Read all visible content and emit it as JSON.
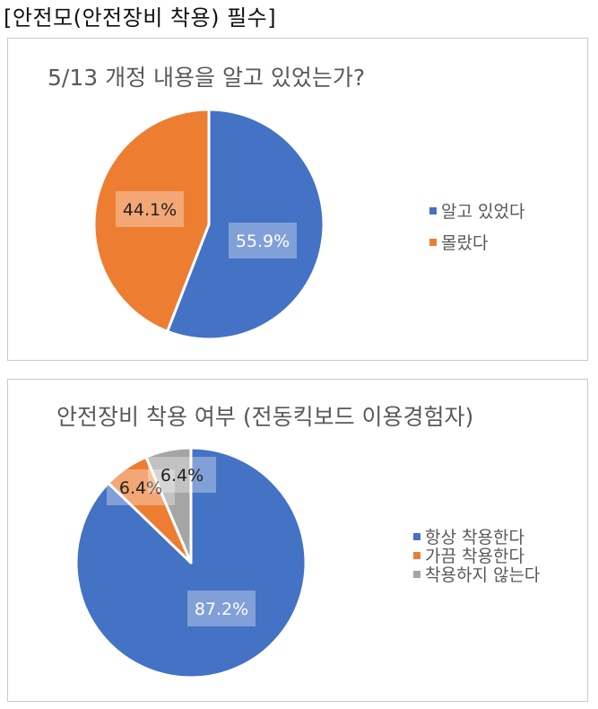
{
  "header": {
    "title": "[안전모(안전장비 착용) 필수]"
  },
  "chart_data": [
    {
      "type": "pie",
      "title": "5/13 개정 내용을 알고 있었는가?",
      "categories": [
        "알고 있었다",
        "몰랐다"
      ],
      "values": [
        55.9,
        44.1
      ],
      "labels": [
        "55.9%",
        "44.1%"
      ],
      "colors": [
        "#4472C4",
        "#ED7D31"
      ],
      "legend": "right"
    },
    {
      "type": "pie",
      "title": "안전장비 착용 여부 (전동킥보드 이용경험자)",
      "categories": [
        "항상 착용한다",
        "가끔 착용한다",
        "착용하지 않는다"
      ],
      "values": [
        87.2,
        6.4,
        6.4
      ],
      "labels": [
        "87.2%",
        "6.4%",
        "6.4%"
      ],
      "colors": [
        "#4472C4",
        "#ED7D31",
        "#A5A5A5"
      ],
      "legend": "right"
    }
  ]
}
